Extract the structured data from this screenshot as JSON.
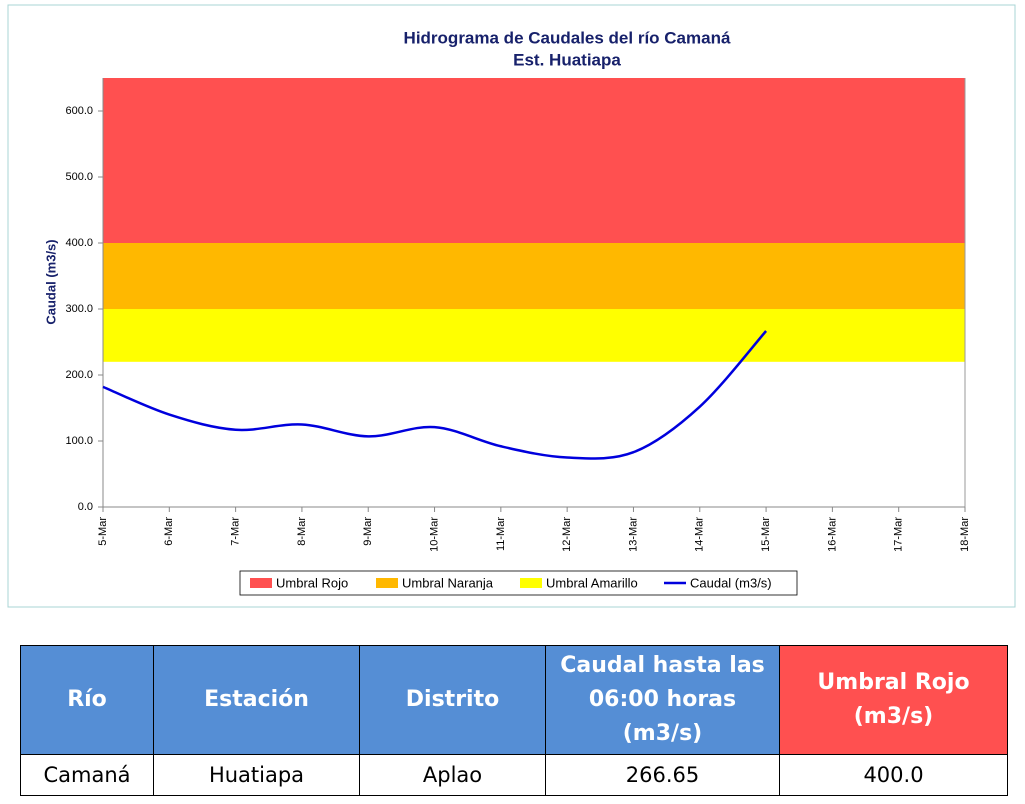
{
  "chart_data": {
    "type": "line",
    "title": "Hidrograma de Caudales del río Camaná",
    "subtitle": "Est. Huatiapa",
    "y_label": "Caudal (m3/s)",
    "categories": [
      "5-Mar",
      "6-Mar",
      "7-Mar",
      "8-Mar",
      "9-Mar",
      "10-Mar",
      "11-Mar",
      "12-Mar",
      "13-Mar",
      "14-Mar",
      "15-Mar",
      "16-Mar",
      "17-Mar",
      "18-Mar"
    ],
    "ylim": [
      0,
      650
    ],
    "yticks": [
      {
        "value": 0,
        "label": "0.0"
      },
      {
        "value": 100,
        "label": "100.0"
      },
      {
        "value": 200,
        "label": "200.0"
      },
      {
        "value": 300,
        "label": "300.0"
      },
      {
        "value": 400,
        "label": "400.0"
      },
      {
        "value": 500,
        "label": "500.0"
      },
      {
        "value": 600,
        "label": "600.0"
      }
    ],
    "bands": [
      {
        "name": "Umbral Rojo",
        "color": "#ff5050",
        "lower": 400,
        "upper": 650
      },
      {
        "name": "Umbral Naranja",
        "color": "#ffb800",
        "lower": 300,
        "upper": 400
      },
      {
        "name": "Umbral Amarillo",
        "color": "#ffff00",
        "lower": 220,
        "upper": 300
      }
    ],
    "series": [
      {
        "name": "Caudal (m3/s)",
        "color": "#0000dd",
        "values": [
          182,
          140,
          117,
          125,
          107,
          121,
          92,
          75,
          83,
          152,
          266.65,
          null,
          null,
          null
        ]
      }
    ]
  },
  "table": {
    "headers": [
      "Río",
      "Estación",
      "Distrito",
      "Caudal hasta las 06:00 horas (m3/s)",
      "Umbral  Rojo (m3/s)"
    ],
    "rows": [
      [
        "Camaná",
        "Huatiapa",
        "Aplao",
        "266.65",
        "400.0"
      ]
    ]
  }
}
